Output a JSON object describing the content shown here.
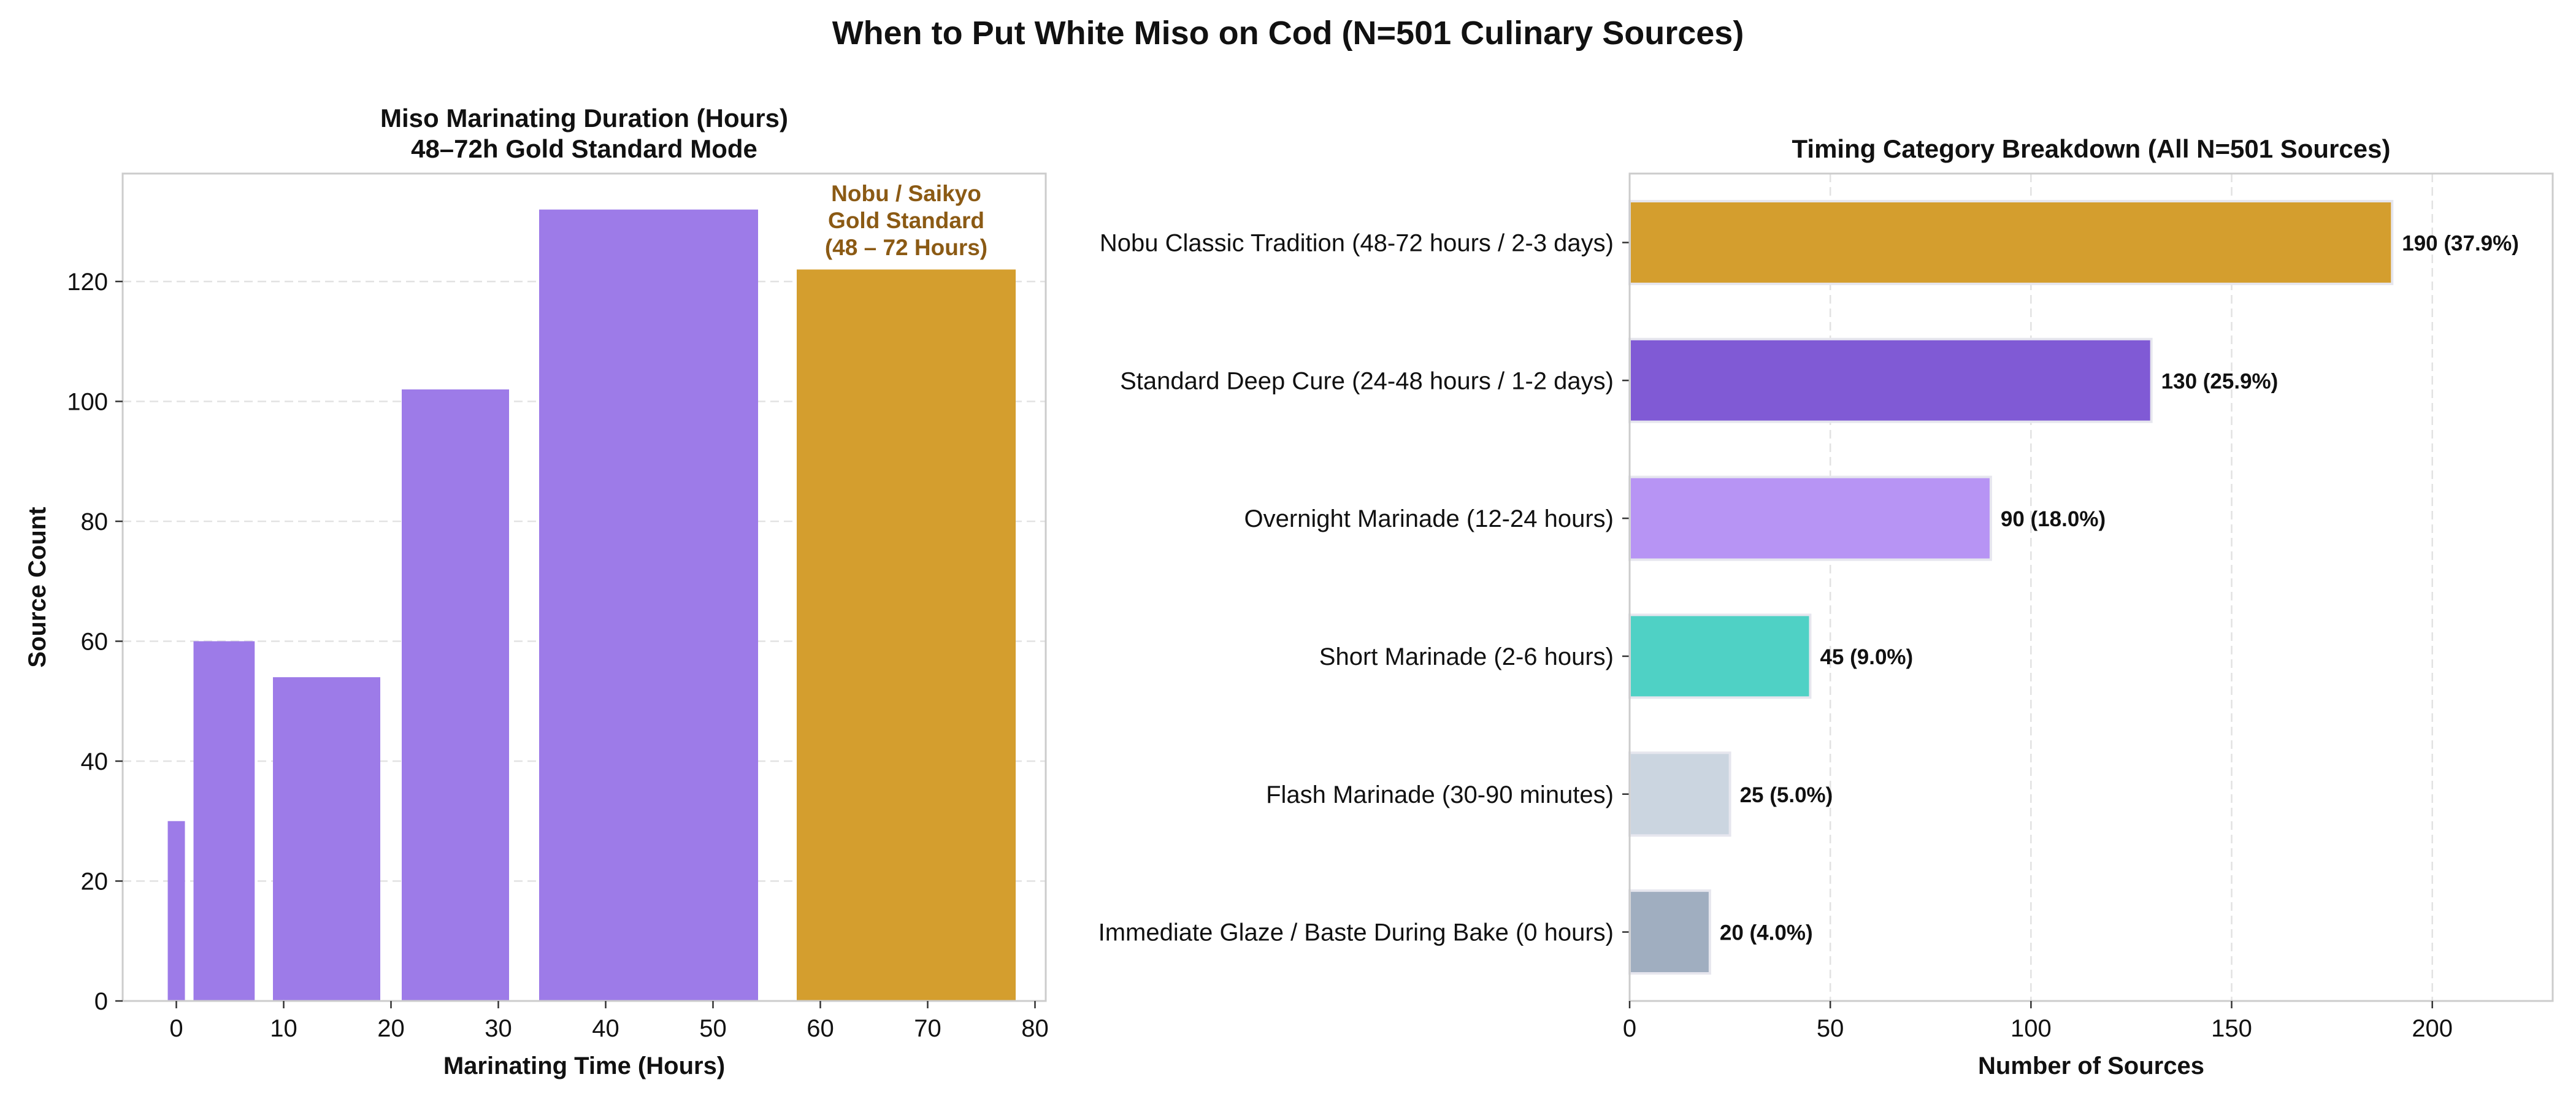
{
  "figure": {
    "suptitle": "When to Put White Miso on Cod (N=501 Culinary Sources)"
  },
  "chart_data": [
    {
      "type": "bar",
      "title": "Miso Marinating Duration (Hours)\n48–72h Gold Standard Mode",
      "title_lines": [
        "Miso Marinating Duration (Hours)",
        "48–72h Gold Standard Mode"
      ],
      "xlabel": "Marinating Time (Hours)",
      "ylabel": "Source Count",
      "xlim": [
        -5,
        81
      ],
      "ylim": [
        0,
        138
      ],
      "xticks": [
        0,
        10,
        20,
        30,
        40,
        50,
        60,
        70,
        80
      ],
      "yticks": [
        0,
        20,
        40,
        60,
        80,
        100,
        120
      ],
      "grid": true,
      "bins": [
        {
          "start": -0.8,
          "end": 0.8,
          "value": 30,
          "color": "#9d7be8"
        },
        {
          "start": 1.6,
          "end": 7.3,
          "value": 60,
          "color": "#9d7be8"
        },
        {
          "start": 9.0,
          "end": 19.0,
          "value": 54,
          "color": "#9d7be8"
        },
        {
          "start": 21.0,
          "end": 31.0,
          "value": 102,
          "color": "#9d7be8"
        },
        {
          "start": 33.8,
          "end": 54.2,
          "value": 132,
          "color": "#9d7be8"
        },
        {
          "start": 57.8,
          "end": 78.2,
          "value": 122,
          "color": "#d49e2e"
        }
      ],
      "annotation": {
        "lines": [
          "Nobu / Saikyo",
          "Gold Standard",
          "(48 – 72 Hours)"
        ],
        "x": 68,
        "color": "#8b5a14"
      }
    },
    {
      "type": "bar",
      "orientation": "horizontal",
      "title": "Timing Category Breakdown (All N=501 Sources)",
      "xlabel": "Number of Sources",
      "ylabel": "",
      "xlim": [
        0,
        230
      ],
      "xticks": [
        0,
        50,
        100,
        150,
        200
      ],
      "grid": true,
      "categories": [
        "Nobu Classic Tradition (48-72 hours / 2-3 days)",
        "Standard Deep Cure (24-48 hours / 1-2 days)",
        "Overnight Marinade (12-24 hours)",
        "Short Marinade (2-6 hours)",
        "Flash Marinade (30-90 minutes)",
        "Immediate Glaze / Baste During Bake (0 hours)"
      ],
      "values": [
        190,
        130,
        90,
        45,
        25,
        20
      ],
      "data_labels": [
        "190 (37.9%)",
        "130 (25.9%)",
        "90 (18.0%)",
        "45 (9.0%)",
        "25 (5.0%)",
        "20 (4.0%)"
      ],
      "colors": [
        "#d49e2e",
        "#805ad5",
        "#b794f4",
        "#4fd1c5",
        "#cbd5e0",
        "#a0aec0"
      ]
    }
  ]
}
